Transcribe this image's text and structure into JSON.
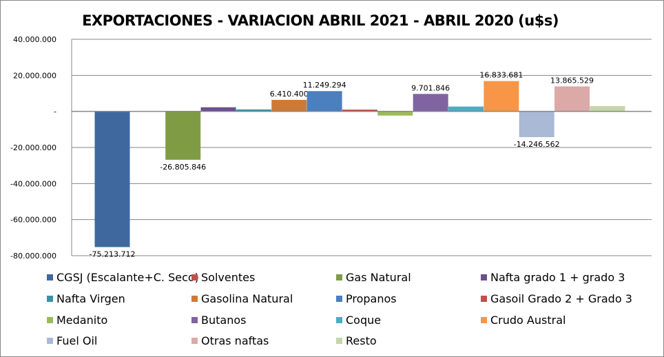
{
  "chart_data": {
    "type": "bar",
    "title": "EXPORTACIONES - VARIACION ABRIL 2021 - ABRIL 2020 (u$s)",
    "xlabel": "",
    "ylabel": "",
    "ylim": [
      -80000000,
      40000000
    ],
    "yticks": [
      40000000,
      20000000,
      0,
      -20000000,
      -40000000,
      -60000000,
      -80000000
    ],
    "ytick_labels": [
      "40.000.000",
      "20.000.000",
      "-",
      "-20.000.000",
      "-40.000.000",
      "-60.000.000",
      "-80.000.000"
    ],
    "grid": true,
    "legend_position": "bottom",
    "series": [
      {
        "name": "CGSJ (Escalante+C. Seco)",
        "value": -75213712,
        "label": "-75.213.712",
        "color": "#3F689F"
      },
      {
        "name": "Solventes",
        "value": 0,
        "label": "",
        "color": "#C0504D"
      },
      {
        "name": "Gas Natural",
        "value": -26805846,
        "label": "-26.805.846",
        "color": "#7F9C45"
      },
      {
        "name": "Nafta grado 1 + grado 3",
        "value": 2300000,
        "label": "",
        "color": "#6A518D"
      },
      {
        "name": "Nafta Virgen",
        "value": 1100000,
        "label": "",
        "color": "#3A91A6"
      },
      {
        "name": "Gasolina Natural",
        "value": 6410400,
        "label": "6.410.400",
        "color": "#CD7A36"
      },
      {
        "name": "Propanos",
        "value": 11249294,
        "label": "11.249.294",
        "color": "#4B7FBE"
      },
      {
        "name": "Gasoil Grado 2 + Grado 3",
        "value": 1000000,
        "label": "",
        "color": "#C0504D"
      },
      {
        "name": "Medanito",
        "value": -2300000,
        "label": "",
        "color": "#9BBB59"
      },
      {
        "name": "Butanos",
        "value": 9701846,
        "label": "9.701.846",
        "color": "#8064A2"
      },
      {
        "name": "Coque",
        "value": 2700000,
        "label": "",
        "color": "#4BACC6"
      },
      {
        "name": "Crudo Austral",
        "value": 16833681,
        "label": "16.833.681",
        "color": "#F79646"
      },
      {
        "name": "Fuel Oil",
        "value": -14246562,
        "label": "-14.246.562",
        "color": "#A9B9D6"
      },
      {
        "name": "Otras naftas",
        "value": 13865529,
        "label": "13.865.529",
        "color": "#DBA9A8"
      },
      {
        "name": "Resto",
        "value": 3000000,
        "label": "",
        "color": "#C5D6A9"
      }
    ]
  }
}
